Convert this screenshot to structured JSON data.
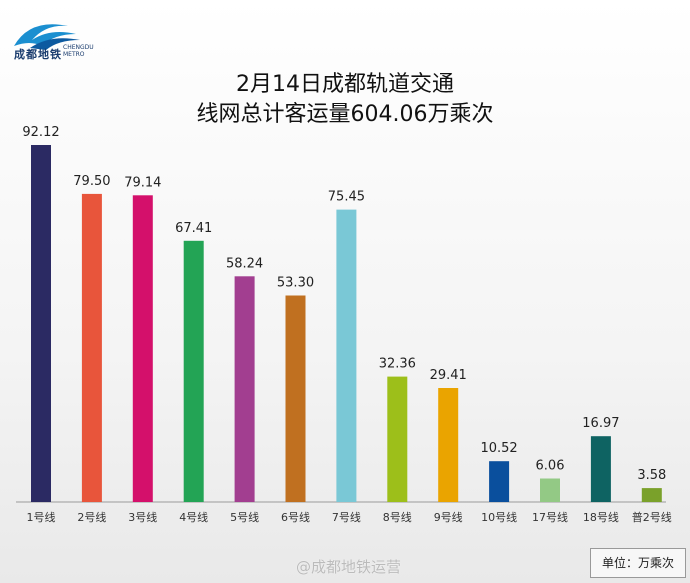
{
  "header": {
    "logo_text": "成都地铁",
    "logo_sub_1": "CHENGDU",
    "logo_sub_2": "METRO",
    "title_line1": "2月14日成都轨道交通",
    "title_line2": "线网总计客运量604.06万乘次"
  },
  "chart_data": {
    "type": "bar",
    "categories": [
      "1号线",
      "2号线",
      "3号线",
      "4号线",
      "5号线",
      "6号线",
      "7号线",
      "8号线",
      "9号线",
      "10号线",
      "17号线",
      "18号线",
      "普2号线"
    ],
    "values": [
      92.12,
      79.5,
      79.14,
      67.41,
      58.24,
      53.3,
      75.45,
      32.36,
      29.41,
      10.52,
      6.06,
      16.97,
      3.58
    ],
    "value_labels": [
      "92.12",
      "79.50",
      "79.14",
      "67.41",
      "58.24",
      "53.30",
      "75.45",
      "32.36",
      "29.41",
      "10.52",
      "6.06",
      "16.97",
      "3.58"
    ],
    "colors": [
      "#2b2a63",
      "#e8553b",
      "#d4106b",
      "#23a455",
      "#a23e90",
      "#c07020",
      "#7ac8d6",
      "#9dbf1a",
      "#eaa400",
      "#0a4f9d",
      "#93c985",
      "#0e6362",
      "#7aa12a"
    ],
    "ylim": [
      0,
      100
    ],
    "unit_label": "单位：万乘次"
  },
  "watermark": "@成都地铁运营"
}
